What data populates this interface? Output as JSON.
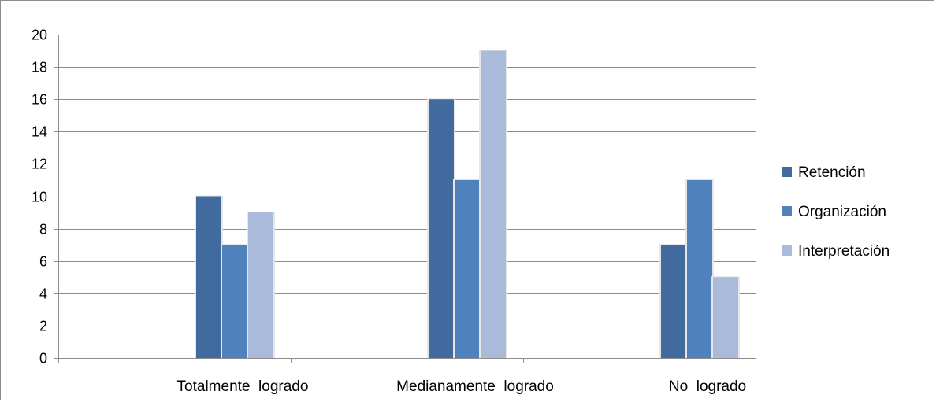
{
  "chart_data": {
    "type": "bar",
    "categories": [
      "Totalmente  logrado",
      "Medianamente  logrado",
      "No  logrado"
    ],
    "series": [
      {
        "name": "Retención",
        "values": [
          10,
          16,
          7
        ],
        "color": "#416A9E"
      },
      {
        "name": "Organización",
        "values": [
          7,
          11,
          11
        ],
        "color": "#4F81BD"
      },
      {
        "name": "Interpretación",
        "values": [
          9,
          19,
          5
        ],
        "color": "#A9BADA"
      }
    ],
    "ylim": [
      0,
      20
    ],
    "ytick_step": 2,
    "grid": true,
    "legend_position": "right"
  }
}
